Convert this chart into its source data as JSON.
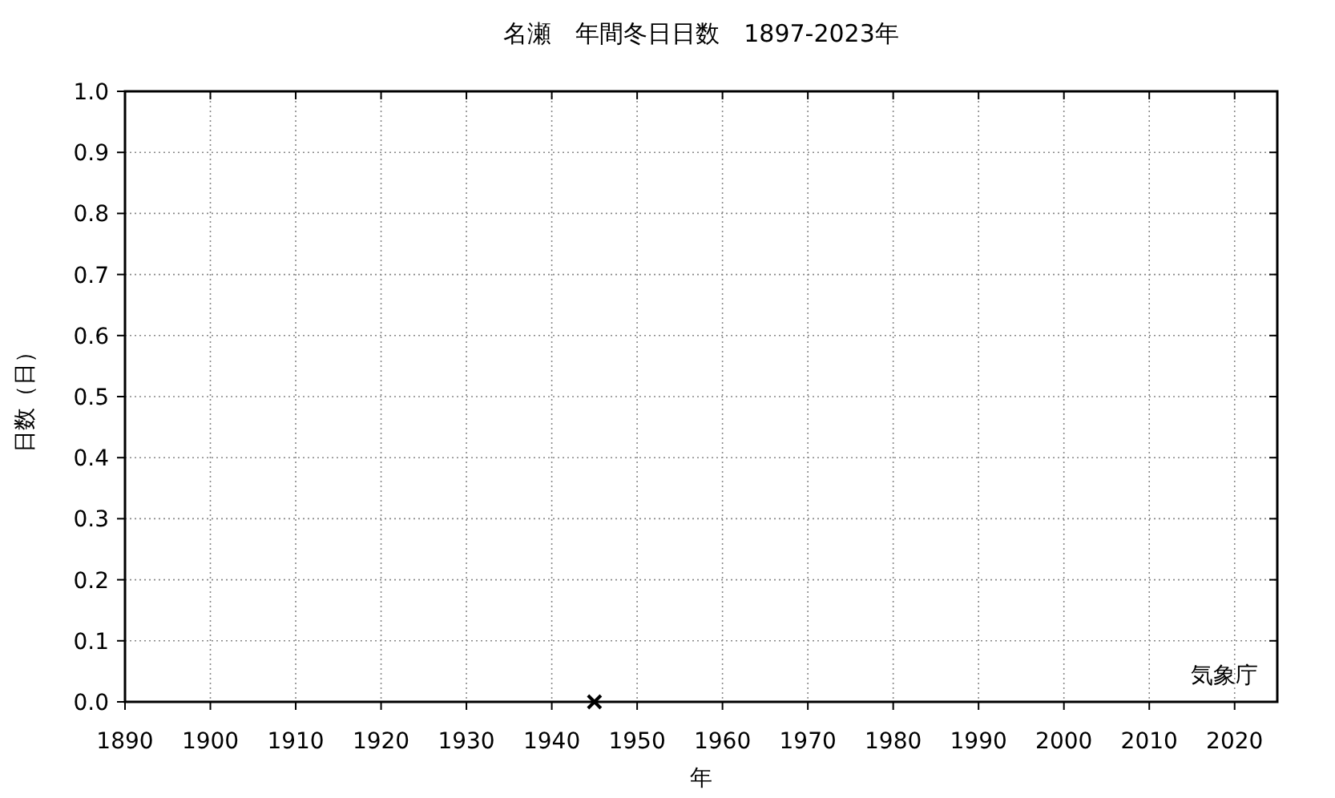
{
  "chart_data": {
    "type": "scatter",
    "title": "名瀬　年間冬日日数　1897-2023年",
    "xlabel": "年",
    "ylabel": "日数（日）",
    "x": [
      1945
    ],
    "values": [
      0
    ],
    "color": "#000000",
    "marker": "cross",
    "xlim": [
      1890,
      2025
    ],
    "xticks": [
      1890,
      1900,
      1910,
      1920,
      1930,
      1940,
      1950,
      1960,
      1970,
      1980,
      1990,
      2000,
      2010,
      2020
    ],
    "ylim": [
      0,
      1
    ],
    "yticks": [
      {
        "value": 0,
        "label": "0.0"
      },
      0.1,
      0.2,
      0.3,
      0.4,
      0.5,
      0.6,
      0.7,
      0.8,
      0.9,
      {
        "value": 1,
        "label": "1.0"
      }
    ],
    "grid": true,
    "annotations": [
      "気象庁"
    ]
  }
}
